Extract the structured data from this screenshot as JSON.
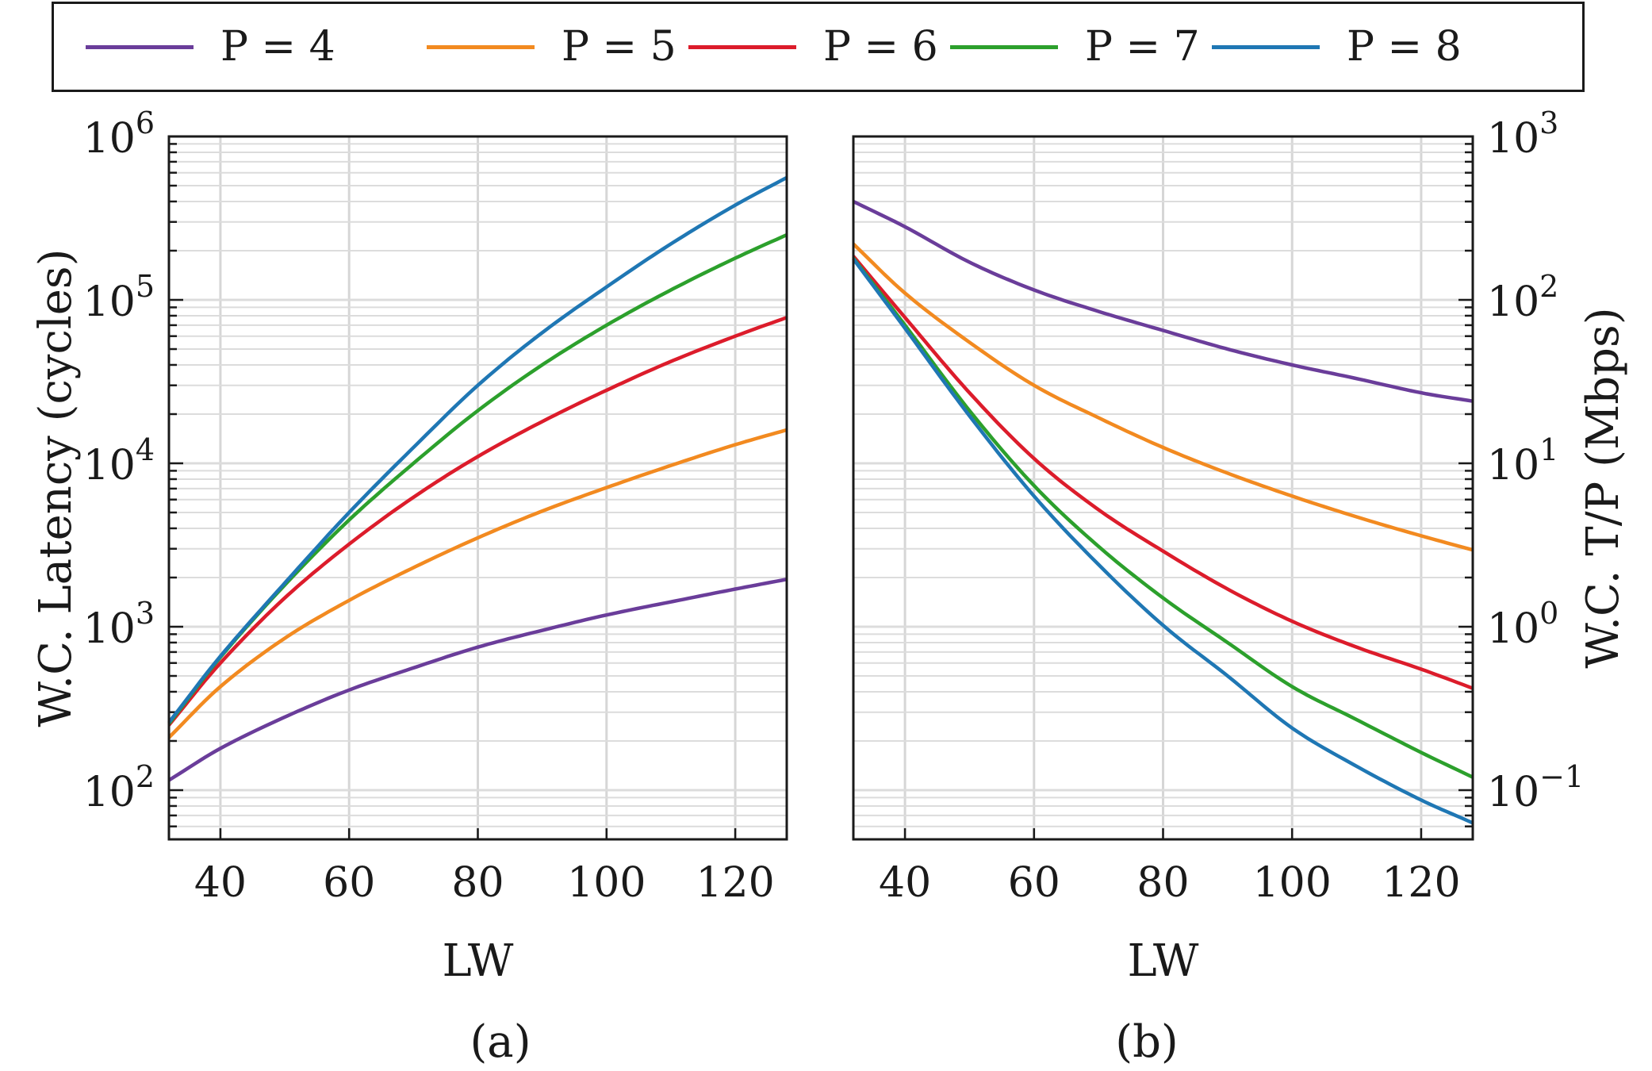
{
  "legend": [
    {
      "label": "P = 4",
      "color": "#6a3d9a"
    },
    {
      "label": "P = 5",
      "color": "#f28a20"
    },
    {
      "label": "P = 6",
      "color": "#dc1c2b"
    },
    {
      "label": "P = 7",
      "color": "#2ca02c"
    },
    {
      "label": "P = 8",
      "color": "#1f77b4"
    }
  ],
  "chart_data": [
    {
      "type": "line",
      "panel_label": "(a)",
      "xlabel": "LW",
      "ylabel": "W.C. Latency (cycles)",
      "y_axis_side": "left",
      "yscale": "log",
      "xlim": [
        32,
        128
      ],
      "ylim": [
        50,
        1000000
      ],
      "xticks": [
        40,
        60,
        80,
        100,
        120
      ],
      "yticks": [
        {
          "value": 100,
          "base": "10",
          "exp": "2"
        },
        {
          "value": 1000,
          "base": "10",
          "exp": "3"
        },
        {
          "value": 10000,
          "base": "10",
          "exp": "4"
        },
        {
          "value": 100000,
          "base": "10",
          "exp": "5"
        },
        {
          "value": 1000000,
          "base": "10",
          "exp": "6"
        }
      ],
      "grid": true,
      "x": [
        32,
        40,
        50,
        60,
        70,
        80,
        90,
        100,
        110,
        120,
        128
      ],
      "series": [
        {
          "name": "P = 4",
          "values": [
            115,
            180,
            280,
            410,
            560,
            750,
            950,
            1180,
            1420,
            1700,
            1950
          ]
        },
        {
          "name": "P = 5",
          "values": [
            210,
            430,
            850,
            1450,
            2300,
            3500,
            5100,
            7100,
            9700,
            13000,
            16000
          ]
        },
        {
          "name": "P = 6",
          "values": [
            250,
            600,
            1500,
            3200,
            6200,
            11000,
            18000,
            28000,
            42000,
            60000,
            78000
          ]
        },
        {
          "name": "P = 7",
          "values": [
            255,
            650,
            1800,
            4500,
            10000,
            21000,
            40000,
            70000,
            115000,
            180000,
            250000
          ]
        },
        {
          "name": "P = 8",
          "values": [
            260,
            660,
            1850,
            5000,
            12500,
            30000,
            63000,
            120000,
            220000,
            380000,
            560000
          ]
        }
      ]
    },
    {
      "type": "line",
      "panel_label": "(b)",
      "xlabel": "LW",
      "ylabel": "W.C. T/P (Mbps)",
      "y_axis_side": "right",
      "yscale": "log",
      "xlim": [
        32,
        128
      ],
      "ylim": [
        0.05,
        1000
      ],
      "xticks": [
        40,
        60,
        80,
        100,
        120
      ],
      "yticks": [
        {
          "value": 0.1,
          "base": "10",
          "exp": "−1"
        },
        {
          "value": 1,
          "base": "10",
          "exp": "0"
        },
        {
          "value": 10,
          "base": "10",
          "exp": "1"
        },
        {
          "value": 100,
          "base": "10",
          "exp": "2"
        },
        {
          "value": 1000,
          "base": "10",
          "exp": "3"
        }
      ],
      "grid": true,
      "x": [
        32,
        40,
        50,
        60,
        70,
        80,
        90,
        100,
        110,
        120,
        128
      ],
      "series": [
        {
          "name": "P = 4",
          "values": [
            400,
            280,
            170,
            115,
            85,
            65,
            50,
            40,
            33,
            27,
            24
          ]
        },
        {
          "name": "P = 5",
          "values": [
            220,
            110,
            55,
            30,
            19,
            12.5,
            8.7,
            6.3,
            4.7,
            3.6,
            2.95
          ]
        },
        {
          "name": "P = 6",
          "values": [
            185,
            78,
            27,
            10.7,
            5.2,
            2.9,
            1.7,
            1.08,
            0.75,
            0.55,
            0.42
          ]
        },
        {
          "name": "P = 7",
          "values": [
            180,
            70,
            21,
            7.3,
            3.1,
            1.5,
            0.8,
            0.43,
            0.27,
            0.17,
            0.12
          ]
        },
        {
          "name": "P = 8",
          "values": [
            178,
            67,
            19.5,
            6.3,
            2.4,
            1.02,
            0.5,
            0.24,
            0.14,
            0.087,
            0.063
          ]
        }
      ]
    }
  ]
}
